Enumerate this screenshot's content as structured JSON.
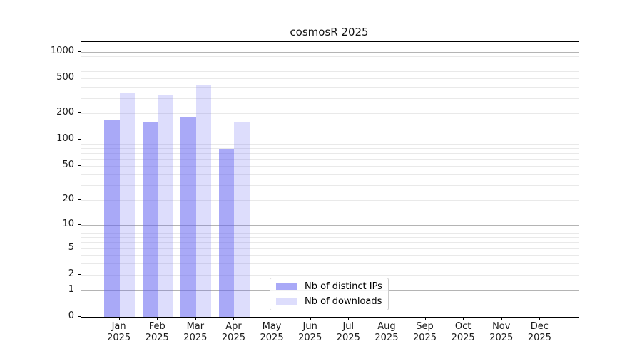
{
  "chart_data": {
    "type": "bar",
    "title": "cosmosR 2025",
    "categories": [
      "Jan",
      "Feb",
      "Mar",
      "Apr",
      "May",
      "Jun",
      "Jul",
      "Aug",
      "Sep",
      "Oct",
      "Nov",
      "Dec"
    ],
    "category_year": "2025",
    "x_tick_labels": [
      "Jan 2025",
      "Feb 2025",
      "Mar 2025",
      "Apr 2025",
      "May 2025",
      "Jun 2025",
      "Jul 2025",
      "Aug 2025",
      "Sep 2025",
      "Oct 2025",
      "Nov 2025",
      "Dec 2025"
    ],
    "series": [
      {
        "name": "Nb of distinct IPs",
        "color": "rgba(99,99,240,0.55)",
        "values": [
          168,
          159,
          182,
          79,
          0,
          0,
          0,
          0,
          0,
          0,
          0,
          0
        ]
      },
      {
        "name": "Nb of downloads",
        "color": "rgba(99,99,240,0.22)",
        "values": [
          341,
          322,
          420,
          161,
          0,
          0,
          0,
          0,
          0,
          0,
          0,
          0
        ]
      }
    ],
    "yscale": "log1p",
    "ylabel": "",
    "xlabel": "",
    "yticks": [
      0,
      1,
      2,
      5,
      10,
      20,
      50,
      100,
      200,
      500,
      1000
    ],
    "major_gridlines": [
      1,
      10,
      100,
      1000
    ],
    "minor_gridlines": [
      2,
      3,
      4,
      5,
      6,
      7,
      8,
      9,
      20,
      30,
      40,
      50,
      60,
      70,
      80,
      90,
      200,
      300,
      400,
      500,
      600,
      700,
      800,
      900
    ],
    "ylim": [
      0,
      1290
    ],
    "grid": "on",
    "legend_position": "inside-bottom-center",
    "colors": {
      "bar_distinct_ips": "rgba(99,99,240,0.55)",
      "bar_downloads": "rgba(99,99,240,0.22)",
      "major_grid": "#b4b4b4",
      "minor_grid": "#e9e9e9",
      "spine": "#000000",
      "text": "#1a1a1a",
      "legend_border": "#cccccc"
    }
  }
}
